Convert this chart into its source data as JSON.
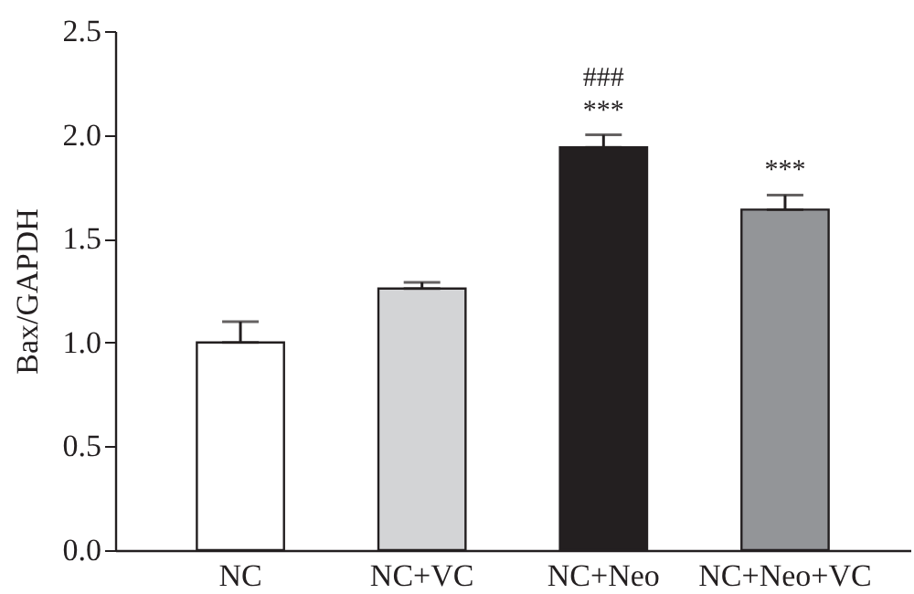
{
  "chart_data": {
    "type": "bar",
    "ylabel": "Bax/GAPDH",
    "categories": [
      "NC",
      "NC+VC",
      "NC+Neo",
      "NC+Neo+VC"
    ],
    "values": [
      1.0,
      1.26,
      1.94,
      1.64
    ],
    "colors": [
      "#ffffff",
      "#d3d4d6",
      "#231f20",
      "#939598"
    ],
    "errors": [
      [
        1.0,
        1.1
      ],
      [
        1.26,
        1.29
      ],
      [
        1.94,
        2.0
      ],
      [
        1.64,
        1.71
      ]
    ],
    "ylim": [
      0,
      2.5
    ],
    "yticks": [
      {
        "value": 0,
        "label": "0.0"
      },
      0.5,
      {
        "value": 1,
        "label": "1.0"
      },
      1.5,
      {
        "value": 2,
        "label": "2.0"
      },
      2.5
    ],
    "grid": false,
    "annotations": [
      {
        "text": "***",
        "x": "NC+Neo",
        "y": 2.0
      },
      {
        "text": "###",
        "x": "NC+Neo",
        "y": 2.0
      },
      {
        "text": "***",
        "x": "NC+Neo+VC",
        "y": 1.71
      }
    ]
  }
}
